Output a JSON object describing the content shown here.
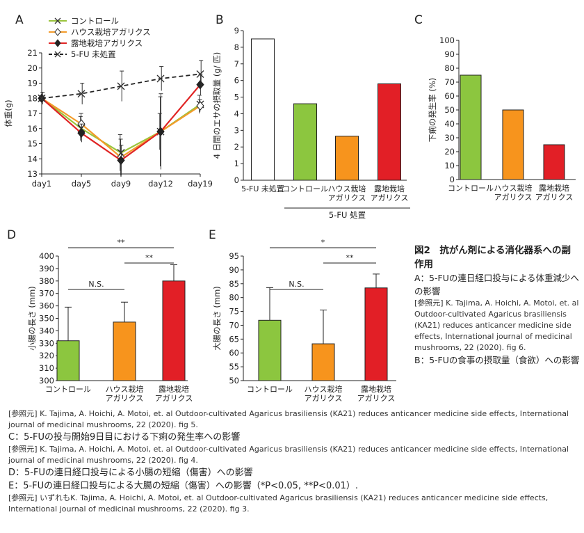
{
  "chart_data": [
    {
      "id": "A",
      "panel_label": "A",
      "type": "line",
      "ylabel": "体重(g)",
      "categories": [
        "day1",
        "day5",
        "day9",
        "day12",
        "day19"
      ],
      "ylim": [
        13,
        21
      ],
      "yticks": [
        13,
        14,
        15,
        16,
        17,
        18,
        19,
        20,
        21
      ],
      "series": [
        {
          "name": "コントロール",
          "color": "#9ac43c",
          "marker": "x",
          "dashed": false,
          "values": [
            18.0,
            16.0,
            14.4,
            15.8,
            17.6
          ],
          "err": [
            0.0,
            0.8,
            1.2,
            1.2,
            0.6
          ]
        },
        {
          "name": "ハウス栽培アガリクス",
          "color": "#f39b2a",
          "marker": "diamond-open",
          "dashed": false,
          "values": [
            18.0,
            16.3,
            14.1,
            15.8,
            17.5
          ],
          "err": [
            0.0,
            0.7,
            1.2,
            2.3,
            0.4
          ]
        },
        {
          "name": "露地栽培アガリクス",
          "color": "#e02424",
          "marker": "diamond",
          "dashed": false,
          "values": [
            18.0,
            15.7,
            13.9,
            15.8,
            18.9
          ],
          "err": [
            0.0,
            0.6,
            1.0,
            2.5,
            0.7
          ]
        },
        {
          "name": "5-FU 未処置",
          "color": "#222222",
          "marker": "x",
          "dashed": true,
          "values": [
            18.0,
            18.3,
            18.8,
            19.3,
            19.6
          ],
          "err": [
            0.4,
            0.7,
            1.0,
            0.8,
            0.9
          ]
        }
      ]
    },
    {
      "id": "B",
      "panel_label": "B",
      "type": "bar",
      "ylabel": "4 日間のエサの摂取量 (g/ 匹)",
      "categories": [
        "5-FU 未処置",
        "コントロール",
        "ハウス栽培\nアガリクス",
        "露地栽培\nアガリクス"
      ],
      "values": [
        8.5,
        4.6,
        2.65,
        5.8
      ],
      "colors": [
        "#ffffff",
        "#8cc63f",
        "#f7941d",
        "#e21f26"
      ],
      "ylim": [
        0,
        9
      ],
      "yticks": [
        0,
        1,
        2,
        3,
        4,
        5,
        6,
        7,
        8,
        9
      ],
      "group_label": "5-FU 処置"
    },
    {
      "id": "C",
      "panel_label": "C",
      "type": "bar",
      "ylabel": "下痢の発生率 (%)",
      "categories": [
        "コントロール",
        "ハウス栽培\nアガリクス",
        "露地栽培\nアガリクス"
      ],
      "values": [
        75,
        50,
        25
      ],
      "colors": [
        "#8cc63f",
        "#f7941d",
        "#e21f26"
      ],
      "ylim": [
        0,
        100
      ],
      "yticks": [
        0,
        10,
        20,
        30,
        40,
        50,
        60,
        70,
        80,
        90,
        100
      ]
    },
    {
      "id": "D",
      "panel_label": "D",
      "type": "bar",
      "ylabel": "小腸の長さ (mm)",
      "categories": [
        "コントロール",
        "ハウス栽培\nアガリクス",
        "露地栽培\nアガリクス"
      ],
      "values": [
        332,
        347,
        380
      ],
      "err": [
        27,
        16,
        13
      ],
      "colors": [
        "#8cc63f",
        "#f7941d",
        "#e21f26"
      ],
      "ylim": [
        300,
        400
      ],
      "yticks": [
        300,
        310,
        320,
        330,
        340,
        350,
        360,
        370,
        380,
        390,
        400
      ],
      "annotations": [
        {
          "from": 0,
          "to": 2,
          "label": "**",
          "level": 0
        },
        {
          "from": 1,
          "to": 2,
          "label": "**",
          "level": 1
        },
        {
          "from": 0,
          "to": 1,
          "label": "N.S.",
          "level": 2
        }
      ]
    },
    {
      "id": "E",
      "panel_label": "E",
      "type": "bar",
      "ylabel": "大腸の長さ (mm)",
      "categories": [
        "コントロール",
        "ハウス栽培\nアガリクス",
        "露地栽培\nアガリクス"
      ],
      "values": [
        71.8,
        63.3,
        83.5
      ],
      "err": [
        11.8,
        12.2,
        5.0
      ],
      "colors": [
        "#8cc63f",
        "#f7941d",
        "#e21f26"
      ],
      "ylim": [
        50,
        95
      ],
      "yticks": [
        50,
        55,
        60,
        65,
        70,
        75,
        80,
        85,
        90,
        95
      ],
      "annotations": [
        {
          "from": 0,
          "to": 2,
          "label": "*",
          "level": 0
        },
        {
          "from": 1,
          "to": 2,
          "label": "**",
          "level": 1
        },
        {
          "from": 0,
          "to": 1,
          "label": "N.S.",
          "level": 2
        }
      ]
    }
  ],
  "caption": {
    "title": "図2　抗がん剤による消化器系への副作用",
    "A": "A：5-FUの連日経口投与による体重減少への影響",
    "A_ref": "[参照元] K. Tajima, A. Hoichi, A. Motoi, et. al Outdoor-cultivated Agaricus brasiliensis (KA21) reduces anticancer medicine side effects, International journal of medicinal mushrooms, 22 (2020). fig 6.",
    "B": "B：5-FUの食事の摂取量（食欲）への影響",
    "B_ref": "[参照元] K. Tajima, A. Hoichi, A. Motoi, et. al Outdoor-cultivated Agaricus brasiliensis (KA21) reduces anticancer medicine side effects, International journal of medicinal mushrooms, 22 (2020). fig 5.",
    "C": "C：5-FUの投与開始9日目における下痢の発生率への影響",
    "C_ref": "[参照元] K. Tajima, A. Hoichi, A. Motoi, et. al Outdoor-cultivated Agaricus brasiliensis (KA21) reduces anticancer medicine side effects, International journal of medicinal mushrooms, 22 (2020). fig 4.",
    "D": "D：5-FUの連日経口投与による小腸の短縮（傷害）への影響",
    "E": "E：5-FUの連日経口投与による大腸の短縮（傷害）への影響（*P<0.05, **P<0.01）.",
    "DE_ref": "[参照元] いずれもK. Tajima, A. Hoichi, A. Motoi, et. al Outdoor-cultivated Agaricus brasiliensis (KA21) reduces anticancer medicine side effects, International journal of medicinal mushrooms, 22 (2020). fig 3."
  }
}
